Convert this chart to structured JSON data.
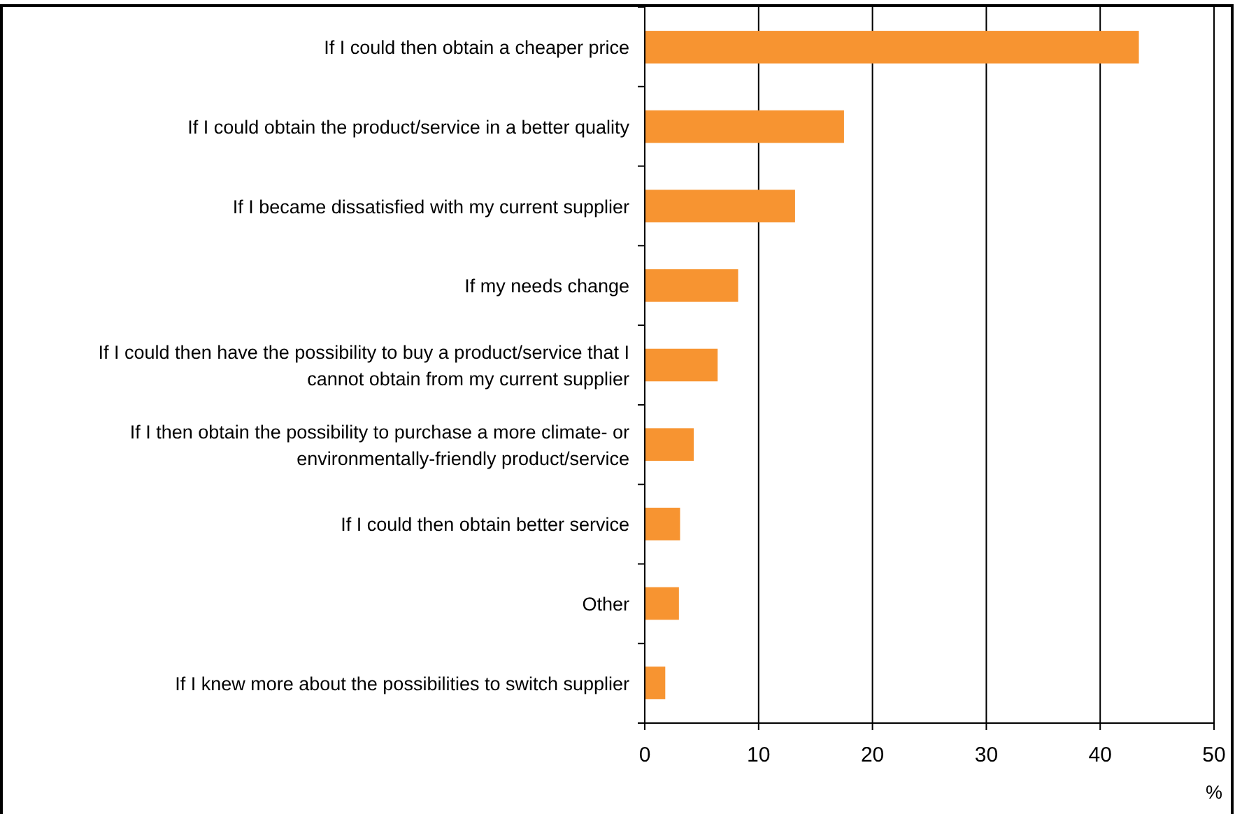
{
  "chart_data": {
    "type": "bar",
    "orientation": "horizontal",
    "xlabel": "%",
    "categories": [
      "If I could then obtain a cheaper price",
      "If I could obtain the product/service in a better quality",
      "If I became dissatisfied with my current supplier",
      "If my needs change",
      "If I could then have the possibility to buy a product/service that I cannot obtain from my current supplier",
      "If I then obtain the possibility to purchase a more climate- or environmentally-friendly product/service",
      "If I could then obtain better service",
      "Other",
      "If I knew more about the possibilities to switch supplier"
    ],
    "values": [
      43.4,
      17.5,
      13.2,
      8.2,
      6.4,
      4.3,
      3.1,
      3.0,
      1.8
    ],
    "color": "#f79431",
    "xlim": [
      0,
      50
    ],
    "xticks": [
      0,
      10,
      20,
      30,
      40,
      50
    ],
    "grid": "x"
  }
}
